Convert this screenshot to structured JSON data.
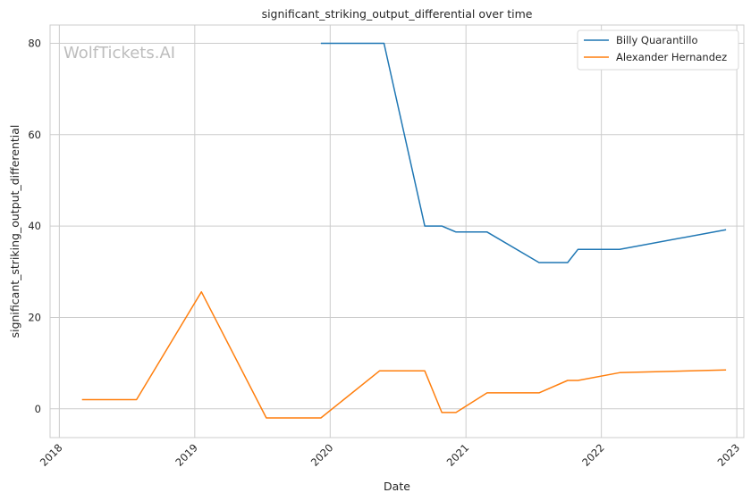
{
  "chart_data": {
    "type": "line",
    "title": "significant_striking_output_differential over time",
    "xlabel": "Date",
    "ylabel": "significant_striking_output_differential",
    "watermark": "WolfTickets.AI",
    "x_ticks": [
      "2018",
      "2019",
      "2020",
      "2021",
      "2022",
      "2023"
    ],
    "y_ticks": [
      0,
      20,
      40,
      60,
      80
    ],
    "ylim": [
      -6.3,
      84
    ],
    "xlim": [
      "2017-12-07",
      "2023-01-20"
    ],
    "grid": true,
    "legend_position": "top-right",
    "series": [
      {
        "name": "Billy Quarantillo",
        "color": "#1f77b4",
        "points": [
          [
            "2019-12-07",
            80.0
          ],
          [
            "2020-05-25",
            80.0
          ],
          [
            "2020-09-12",
            40.0
          ],
          [
            "2020-10-28",
            40.0
          ],
          [
            "2020-12-05",
            38.7
          ],
          [
            "2021-02-27",
            38.7
          ],
          [
            "2021-07-17",
            32.0
          ],
          [
            "2021-10-02",
            32.0
          ],
          [
            "2021-10-30",
            34.9
          ],
          [
            "2022-02-19",
            34.9
          ],
          [
            "2022-12-03",
            39.2
          ]
        ]
      },
      {
        "name": "Alexander Hernandez",
        "color": "#ff7f0e",
        "points": [
          [
            "2018-03-03",
            2.0
          ],
          [
            "2018-07-28",
            2.0
          ],
          [
            "2019-01-19",
            25.6
          ],
          [
            "2019-07-13",
            -2.0
          ],
          [
            "2019-12-07",
            -2.0
          ],
          [
            "2020-05-13",
            8.3
          ],
          [
            "2020-09-12",
            8.3
          ],
          [
            "2020-10-28",
            -0.8
          ],
          [
            "2020-12-05",
            -0.8
          ],
          [
            "2021-02-27",
            3.5
          ],
          [
            "2021-07-17",
            3.5
          ],
          [
            "2021-10-02",
            6.2
          ],
          [
            "2021-10-30",
            6.2
          ],
          [
            "2022-02-19",
            7.9
          ],
          [
            "2022-12-03",
            8.5
          ]
        ]
      }
    ]
  }
}
